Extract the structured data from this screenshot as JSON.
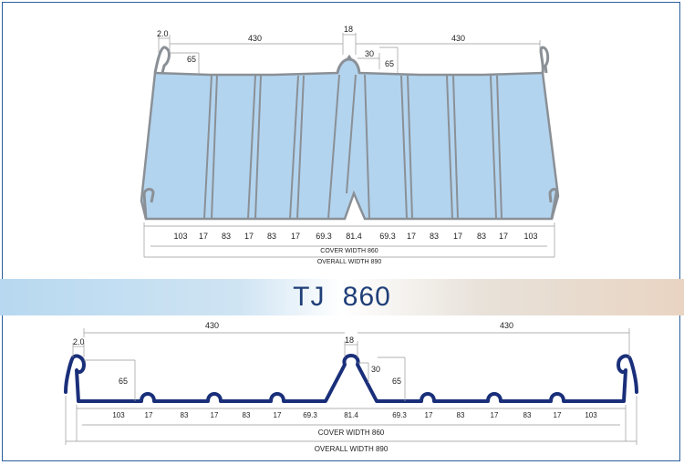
{
  "title": "TJ 860",
  "colors": {
    "sheet_fill": "#b3d4ef",
    "sheet_edge": "#8a9096",
    "profile_line": "#1a2f7a",
    "frame": "#2a5f9e",
    "title": "#1f3f78"
  },
  "top": {
    "labels_top": {
      "left_edge": "2.0",
      "left_span": "430",
      "center_width": "18",
      "right_span": "430",
      "rib_height": "65",
      "rib_height_right": "65",
      "center_height": "30"
    },
    "bottom_widths": [
      "103",
      "17",
      "83",
      "17",
      "83",
      "17",
      "69.3",
      "81.4",
      "69.3",
      "17",
      "83",
      "17",
      "83",
      "17",
      "103"
    ],
    "cover_width": "COVER WIDTH 860",
    "overall_width": "OVERALL WIDTH 890"
  },
  "bottom": {
    "labels_top": {
      "left_edge": "2.0",
      "left_span": "430",
      "center_width": "18",
      "right_span": "430",
      "rib_height": "65",
      "rib_height_right": "65",
      "center_height": "30"
    },
    "bottom_widths": [
      "103",
      "17",
      "83",
      "17",
      "83",
      "17",
      "69.3",
      "81.4",
      "69.3",
      "17",
      "83",
      "17",
      "83",
      "17",
      "103"
    ],
    "cover_width": "COVER WIDTH 860",
    "overall_width": "OVERALL WIDTH 890"
  }
}
